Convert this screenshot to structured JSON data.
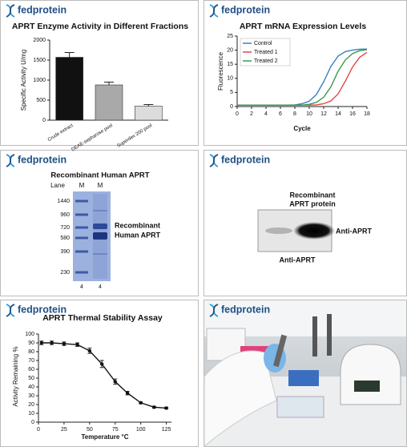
{
  "brand": "fedprotein",
  "chart_data": [
    {
      "type": "bar",
      "title": "APRT Enzyme Activity in Different Fractions",
      "y_label": "Specific Activity U/mg",
      "categories": [
        "Crude extract",
        "DEAE-sepharose pool",
        "Superdex 200 pool"
      ],
      "values": [
        1570,
        880,
        350
      ],
      "errors": [
        120,
        70,
        40
      ],
      "colors": [
        "#111111",
        "#a9a9a9",
        "#dcdcdc"
      ],
      "ylim": [
        0,
        2000
      ],
      "yticks": [
        0,
        500,
        1000,
        1500,
        2000
      ]
    },
    {
      "type": "line",
      "title": "APRT mRNA Expression Levels",
      "x_label": "Cycle",
      "y_label": "Fluorescence",
      "x": [
        0,
        1,
        2,
        3,
        4,
        5,
        6,
        7,
        8,
        9,
        10,
        11,
        12,
        13,
        14,
        15,
        16,
        17,
        18
      ],
      "series": [
        {
          "name": "Control",
          "color": "#3a7fc4",
          "values": [
            0.5,
            0.5,
            0.5,
            0.5,
            0.5,
            0.5,
            0.5,
            0.5,
            0.6,
            1.0,
            1.9,
            4.3,
            8.8,
            14.2,
            17.9,
            19.5,
            20.0,
            20.3,
            20.4
          ]
        },
        {
          "name": "Treated 1",
          "color": "#e04848",
          "values": [
            0.5,
            0.5,
            0.5,
            0.5,
            0.5,
            0.5,
            0.5,
            0.5,
            0.5,
            0.5,
            0.5,
            0.6,
            1.0,
            2.0,
            4.5,
            9.0,
            14.0,
            17.5,
            19.2
          ]
        },
        {
          "name": "Treated 2",
          "color": "#3a9a4a",
          "values": [
            0.5,
            0.5,
            0.5,
            0.5,
            0.5,
            0.5,
            0.5,
            0.5,
            0.5,
            0.5,
            0.8,
            1.5,
            3.3,
            7.0,
            12.5,
            16.5,
            18.8,
            19.8,
            20.2
          ]
        }
      ],
      "legend": "upper left",
      "xlim": [
        0,
        18
      ],
      "xticks": [
        0,
        2,
        4,
        6,
        8,
        10,
        12,
        14,
        16,
        18
      ],
      "ylim": [
        0,
        25
      ],
      "yticks": [
        0,
        5,
        10,
        15,
        20,
        25
      ]
    },
    {
      "type": "line",
      "title": "APRT Thermal Stability Assay",
      "x_label": "Temperature °C",
      "y_label": "Activity Remaining %",
      "x": [
        3,
        13,
        25,
        38,
        50,
        62,
        75,
        87,
        100,
        113,
        125
      ],
      "values": [
        90,
        90,
        89,
        88,
        81,
        66,
        46,
        33,
        22,
        17,
        16
      ],
      "errors": [
        2,
        2,
        2,
        2,
        3,
        4,
        3,
        2,
        1,
        1,
        1
      ],
      "color": "#111111",
      "markers": true,
      "xlim": [
        0,
        130
      ],
      "xticks": [
        0,
        25,
        50,
        75,
        100,
        125
      ],
      "ylim": [
        0,
        100
      ],
      "yticks": [
        0,
        10,
        20,
        30,
        40,
        50,
        60,
        70,
        80,
        90,
        100
      ]
    }
  ],
  "gel": {
    "title": "Recombinant Human APRT",
    "lane_label": "Lane",
    "lanes": [
      "M",
      "M"
    ],
    "markers": [
      1440,
      960,
      720,
      580,
      390,
      230
    ],
    "band_label": [
      "Recombinant",
      "Human APRT"
    ],
    "lane_numbers": [
      4,
      4
    ]
  },
  "blot": {
    "title_lines": [
      "Recombinant",
      "APRT protein"
    ],
    "band_label": "Anti-APRT",
    "antibody_label": "Anti-APRT"
  }
}
